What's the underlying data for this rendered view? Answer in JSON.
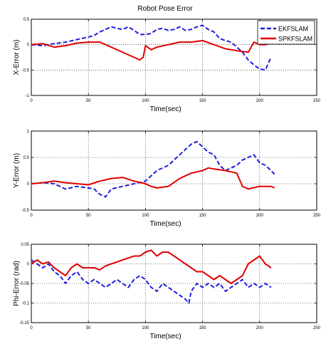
{
  "figure_title": "Robot Pose Error",
  "colors": {
    "ekf": "#1f1fe0",
    "spkf": "#e00000",
    "grid": "#000000",
    "axis": "#000000"
  },
  "chart_data": [
    {
      "type": "line",
      "title": "Robot Pose Error",
      "xlabel": "Time(sec)",
      "ylabel": "X-Error (m)",
      "xlim": [
        0,
        250
      ],
      "ylim": [
        -1,
        0.5
      ],
      "xticks": [
        0,
        50,
        100,
        150,
        200,
        250
      ],
      "yticks": [
        -1,
        -0.5,
        0,
        0.5
      ],
      "ytick_labels": [
        "-1",
        "-0.5",
        "0",
        "0.5"
      ],
      "grid": true,
      "legend": {
        "placement": "top-right",
        "entries": [
          "EKFSLAM",
          "SPKFSLAM"
        ]
      },
      "series": [
        {
          "name": "EKFSLAM",
          "style": "dashed",
          "x": [
            0,
            10,
            20,
            30,
            40,
            50,
            55,
            60,
            65,
            70,
            75,
            80,
            85,
            90,
            95,
            100,
            105,
            110,
            115,
            120,
            125,
            130,
            135,
            140,
            145,
            150,
            155,
            160,
            165,
            170,
            175,
            180,
            185,
            190,
            195,
            200,
            205,
            210
          ],
          "y": [
            0.0,
            -0.02,
            0.02,
            0.05,
            0.1,
            0.15,
            0.18,
            0.25,
            0.3,
            0.35,
            0.32,
            0.3,
            0.35,
            0.28,
            0.2,
            0.2,
            0.22,
            0.3,
            0.32,
            0.28,
            0.3,
            0.35,
            0.28,
            0.3,
            0.35,
            0.38,
            0.3,
            0.25,
            0.12,
            0.08,
            0.05,
            -0.05,
            -0.15,
            -0.3,
            -0.4,
            -0.48,
            -0.5,
            -0.25
          ]
        },
        {
          "name": "SPKFSLAM",
          "style": "solid",
          "x": [
            0,
            10,
            20,
            30,
            40,
            50,
            60,
            70,
            80,
            90,
            95,
            98,
            100,
            105,
            110,
            120,
            130,
            140,
            150,
            160,
            170,
            180,
            190,
            195,
            200,
            205,
            210
          ],
          "y": [
            0.0,
            0.02,
            -0.05,
            -0.02,
            0.03,
            0.05,
            0.05,
            -0.05,
            -0.15,
            -0.25,
            -0.3,
            -0.25,
            -0.02,
            -0.1,
            -0.05,
            0.0,
            0.05,
            0.05,
            0.08,
            0.0,
            -0.08,
            -0.12,
            -0.15,
            0.05,
            0.0,
            0.0,
            0.02
          ]
        }
      ]
    },
    {
      "type": "line",
      "xlabel": "Time(sec)",
      "ylabel": "Y-Error (m)",
      "xlim": [
        0,
        250
      ],
      "ylim": [
        -0.5,
        1
      ],
      "xticks": [
        0,
        50,
        100,
        150,
        200,
        250
      ],
      "yticks": [
        -0.5,
        0,
        0.5,
        1
      ],
      "ytick_labels": [
        "-0.5",
        "0",
        "0.5",
        "1"
      ],
      "grid": true,
      "series": [
        {
          "name": "EKFSLAM",
          "style": "dashed",
          "x": [
            0,
            10,
            20,
            25,
            30,
            40,
            50,
            55,
            60,
            65,
            70,
            80,
            90,
            100,
            105,
            110,
            120,
            125,
            130,
            135,
            140,
            145,
            150,
            155,
            160,
            165,
            170,
            175,
            180,
            185,
            190,
            195,
            200,
            205,
            210,
            213
          ],
          "y": [
            0.0,
            0.02,
            0.0,
            -0.05,
            -0.1,
            -0.05,
            -0.08,
            -0.1,
            -0.2,
            -0.25,
            -0.1,
            -0.05,
            0.0,
            0.05,
            0.15,
            0.25,
            0.35,
            0.45,
            0.55,
            0.65,
            0.75,
            0.8,
            0.7,
            0.6,
            0.55,
            0.35,
            0.25,
            0.3,
            0.35,
            0.45,
            0.5,
            0.55,
            0.4,
            0.35,
            0.25,
            0.18
          ]
        },
        {
          "name": "SPKFSLAM",
          "style": "solid",
          "x": [
            0,
            10,
            20,
            30,
            40,
            50,
            60,
            70,
            80,
            90,
            100,
            105,
            110,
            120,
            130,
            140,
            150,
            155,
            160,
            170,
            180,
            185,
            190,
            200,
            210,
            213
          ],
          "y": [
            0.0,
            0.02,
            0.05,
            0.02,
            0.0,
            -0.02,
            0.05,
            0.1,
            0.12,
            0.05,
            0.0,
            -0.05,
            -0.08,
            -0.05,
            0.1,
            0.2,
            0.25,
            0.3,
            0.28,
            0.25,
            0.2,
            -0.05,
            -0.1,
            -0.05,
            -0.05,
            -0.08
          ]
        }
      ]
    },
    {
      "type": "line",
      "xlabel": "Time(sec)",
      "ylabel": "Phi-Error (rad)",
      "xlim": [
        0,
        250
      ],
      "ylim": [
        -0.15,
        0.05
      ],
      "xticks": [
        0,
        50,
        100,
        150,
        200,
        250
      ],
      "yticks": [
        -0.15,
        -0.1,
        -0.05,
        0,
        0.05
      ],
      "ytick_labels": [
        "-0.15",
        "-0.1",
        "-0.05",
        "0",
        "0.05"
      ],
      "grid": true,
      "series": [
        {
          "name": "EKFSLAM",
          "style": "dashed",
          "x": [
            0,
            5,
            10,
            15,
            20,
            25,
            30,
            35,
            40,
            45,
            50,
            55,
            60,
            65,
            70,
            75,
            80,
            85,
            90,
            95,
            100,
            105,
            110,
            115,
            120,
            125,
            130,
            135,
            138,
            140,
            145,
            150,
            155,
            160,
            165,
            170,
            175,
            180,
            185,
            190,
            195,
            200,
            205,
            210
          ],
          "y": [
            0.01,
            0.0,
            -0.01,
            0.0,
            -0.02,
            -0.03,
            -0.05,
            -0.03,
            -0.02,
            -0.04,
            -0.05,
            -0.04,
            -0.05,
            -0.06,
            -0.05,
            -0.04,
            -0.05,
            -0.06,
            -0.04,
            -0.03,
            -0.04,
            -0.06,
            -0.07,
            -0.05,
            -0.06,
            -0.07,
            -0.08,
            -0.09,
            -0.1,
            -0.07,
            -0.05,
            -0.06,
            -0.05,
            -0.06,
            -0.05,
            -0.07,
            -0.06,
            -0.05,
            -0.04,
            -0.06,
            -0.05,
            -0.06,
            -0.05,
            -0.06
          ]
        },
        {
          "name": "SPKFSLAM",
          "style": "solid",
          "x": [
            0,
            5,
            10,
            15,
            20,
            25,
            30,
            35,
            40,
            45,
            50,
            55,
            60,
            65,
            70,
            75,
            80,
            85,
            90,
            95,
            100,
            105,
            110,
            115,
            120,
            125,
            130,
            135,
            140,
            145,
            150,
            155,
            160,
            165,
            170,
            175,
            180,
            185,
            190,
            195,
            200,
            205,
            210
          ],
          "y": [
            0.0,
            0.01,
            0.0,
            0.005,
            -0.01,
            -0.02,
            -0.03,
            -0.01,
            0.0,
            -0.01,
            -0.01,
            -0.01,
            -0.015,
            -0.005,
            0.0,
            0.005,
            0.01,
            0.015,
            0.02,
            0.02,
            0.03,
            0.035,
            0.02,
            0.03,
            0.03,
            0.02,
            0.01,
            0.0,
            -0.01,
            -0.02,
            -0.02,
            -0.03,
            -0.04,
            -0.03,
            -0.04,
            -0.05,
            -0.04,
            -0.03,
            0.0,
            0.01,
            0.02,
            0.0,
            -0.01
          ]
        }
      ]
    }
  ]
}
